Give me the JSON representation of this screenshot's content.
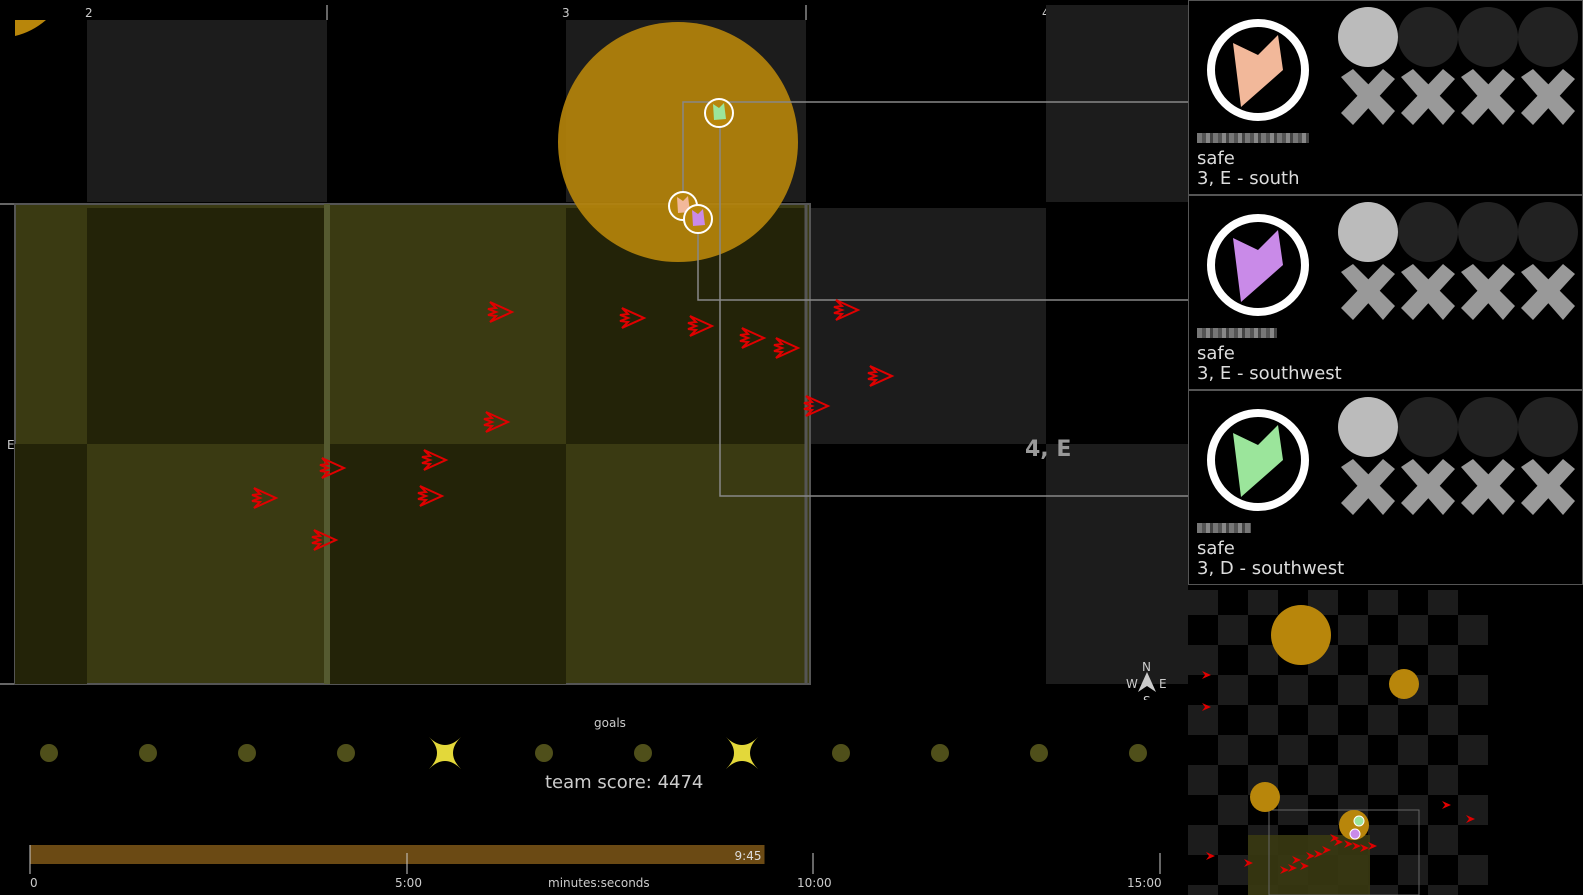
{
  "map": {
    "column_labels": [
      "2",
      "3",
      "4"
    ],
    "row_label": "E",
    "sector_label": "4, E",
    "compass": {
      "n": "N",
      "e": "E",
      "s": "S",
      "w": "W"
    },
    "colors": {
      "danger_zone": "#b8860b",
      "safe_area": "#4a4a18",
      "enemy": "#e00000",
      "tile": "#1c1c1c"
    }
  },
  "players": [
    {
      "color": "#f2b89a",
      "status": "safe",
      "location": "3, E - south",
      "icon": "player-avatar-icon"
    },
    {
      "color": "#c98ae8",
      "status": "safe",
      "location": "3, E - southwest",
      "icon": "player-avatar-icon"
    },
    {
      "color": "#9be59b",
      "status": "safe",
      "location": "3, D - southwest",
      "icon": "player-avatar-icon"
    }
  ],
  "goals": {
    "title": "goals",
    "items": [
      "pending",
      "pending",
      "pending",
      "pending",
      "completed",
      "pending",
      "pending",
      "completed",
      "pending",
      "pending",
      "pending",
      "pending"
    ],
    "pending_color": "#4f4f1a",
    "completed_color": "#e3d83a"
  },
  "team_score": "team score: 4474",
  "timeline": {
    "elapsed_label": "9:45",
    "elapsed_fraction": 0.65,
    "ticks": [
      "0",
      "5:00",
      "10:00",
      "15:00"
    ],
    "axis_label": "minutes:seconds",
    "bar_color": "#6b4a14"
  }
}
